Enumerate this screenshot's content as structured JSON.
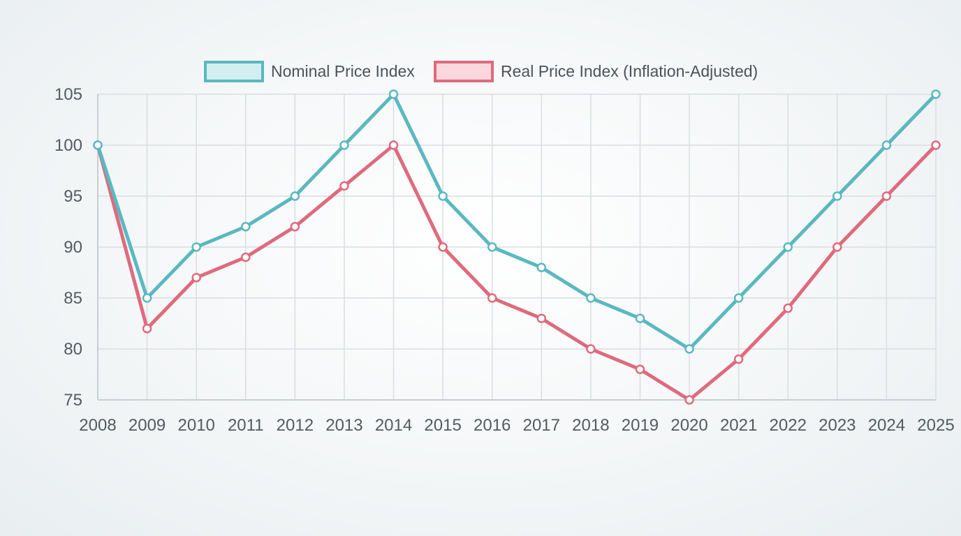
{
  "chart_data": {
    "type": "line",
    "x": [
      "2008",
      "2009",
      "2010",
      "2011",
      "2012",
      "2013",
      "2014",
      "2015",
      "2016",
      "2017",
      "2018",
      "2019",
      "2020",
      "2021",
      "2022",
      "2023",
      "2024",
      "2025"
    ],
    "ylim": [
      75,
      105
    ],
    "yticks": [
      75,
      80,
      85,
      90,
      95,
      100,
      105
    ],
    "grid": true,
    "legend_position": "top-center",
    "series": [
      {
        "name": "Nominal Price Index",
        "color": "#5ab8c1",
        "fill": "#d3eef0",
        "values": [
          100,
          85,
          90,
          92,
          95,
          100,
          105,
          95,
          90,
          88,
          85,
          83,
          80,
          85,
          90,
          95,
          100,
          105
        ]
      },
      {
        "name": "Real Price Index (Inflation-Adjusted)",
        "color": "#de6b7c",
        "fill": "#f9d7dc",
        "values": [
          100,
          82,
          87,
          89,
          92,
          96,
          100,
          90,
          85,
          83,
          80,
          78,
          75,
          79,
          84,
          90,
          95,
          100
        ]
      }
    ]
  }
}
